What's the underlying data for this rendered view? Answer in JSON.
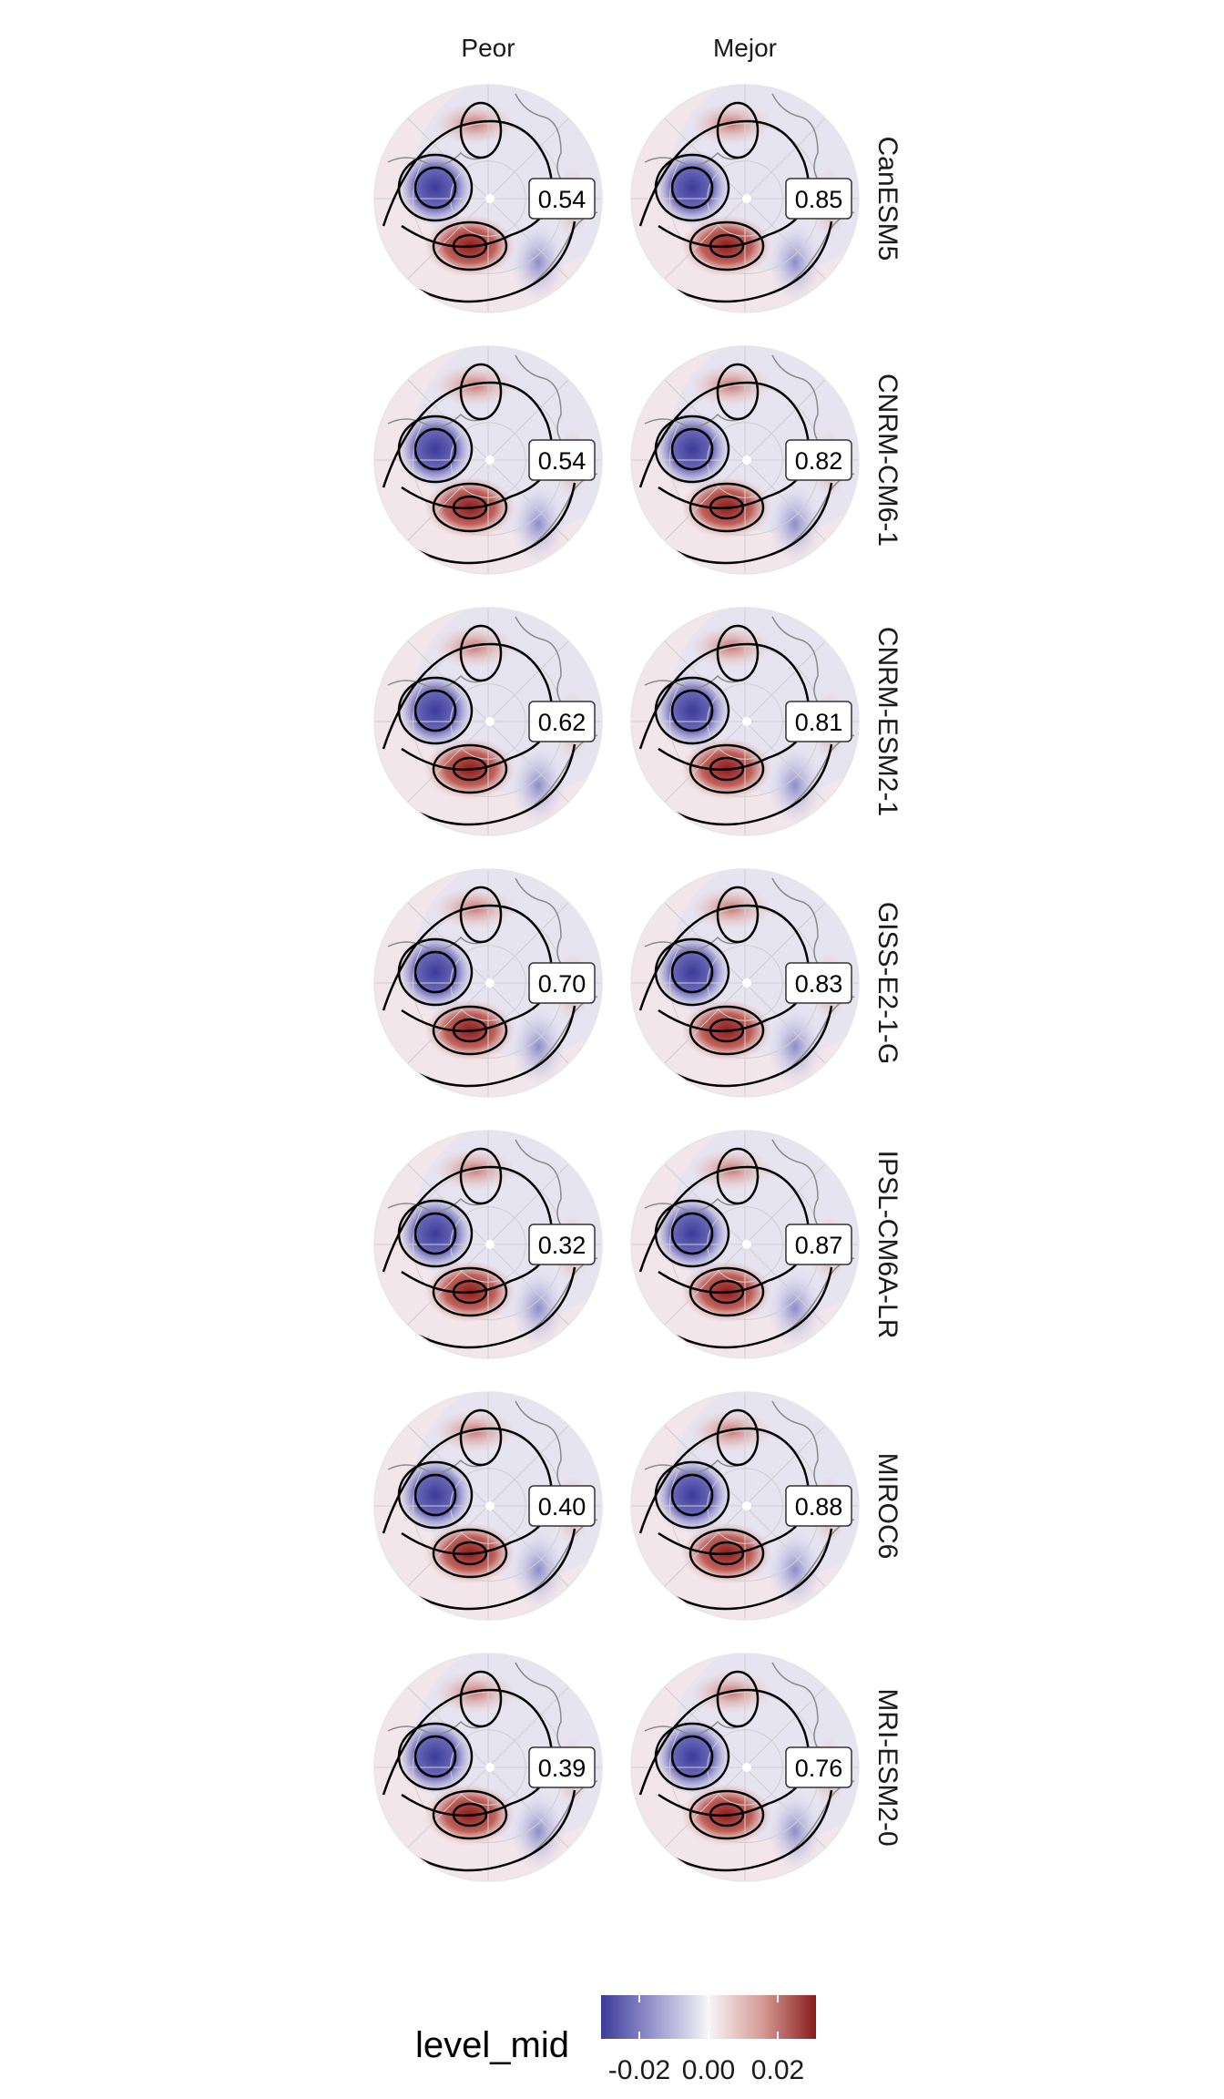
{
  "column_headers": [
    "Peor",
    "Mejor"
  ],
  "rows": [
    {
      "model": "CanESM5",
      "peor": "0.54",
      "mejor": "0.85"
    },
    {
      "model": "CNRM-CM6-1",
      "peor": "0.54",
      "mejor": "0.82"
    },
    {
      "model": "CNRM-ESM2-1",
      "peor": "0.62",
      "mejor": "0.81"
    },
    {
      "model": "GISS-E2-1-G",
      "peor": "0.70",
      "mejor": "0.83"
    },
    {
      "model": "IPSL-CM6A-LR",
      "peor": "0.32",
      "mejor": "0.87"
    },
    {
      "model": "MIROC6",
      "peor": "0.40",
      "mejor": "0.88"
    },
    {
      "model": "MRI-ESM2-0",
      "peor": "0.39",
      "mejor": "0.76"
    }
  ],
  "legend": {
    "title": "level_mid",
    "ticks": [
      "-0.02",
      "0.00",
      "0.02"
    ],
    "colors": {
      "negative": "#3b3b9a",
      "neutral": "#f7f5f7",
      "positive": "#8a1c1c"
    }
  }
}
